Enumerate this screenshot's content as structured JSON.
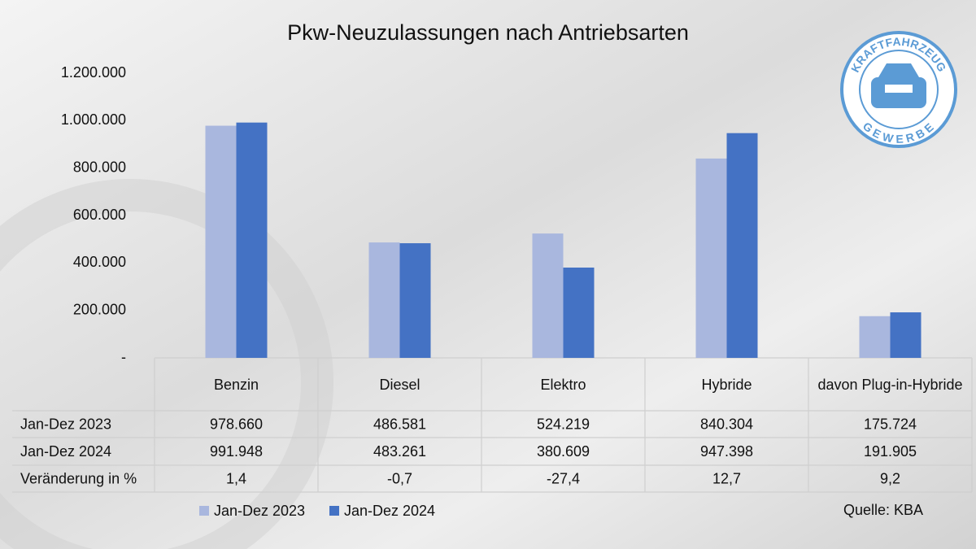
{
  "chart_data": {
    "type": "bar",
    "title": "Pkw-Neuzulassungen nach Antriebsarten",
    "categories": [
      "Benzin",
      "Diesel",
      "Elektro",
      "Hybride",
      "davon Plug-in-Hybride"
    ],
    "series": [
      {
        "name": "Jan-Dez 2023",
        "color": "#a9b7de",
        "values": [
          978660,
          486581,
          524219,
          840304,
          175724
        ],
        "value_labels": [
          "978.660",
          "486.581",
          "524.219",
          "840.304",
          "175.724"
        ]
      },
      {
        "name": "Jan-Dez 2024",
        "color": "#4472c4",
        "values": [
          991948,
          483261,
          380609,
          947398,
          191905
        ],
        "value_labels": [
          "991.948",
          "483.261",
          "380.609",
          "947.398",
          "191.905"
        ]
      }
    ],
    "change": {
      "name": "Veränderung in %",
      "values": [
        1.4,
        -0.7,
        -27.4,
        12.7,
        9.2
      ],
      "value_labels": [
        "1,4",
        "-0,7",
        "-27,4",
        "12,7",
        "9,2"
      ]
    },
    "ylim": [
      0,
      1200000
    ],
    "yticks": [
      {
        "value": 0,
        "label": "-"
      },
      {
        "value": 200000,
        "label": "200.000"
      },
      {
        "value": 400000,
        "label": "400.000"
      },
      {
        "value": 600000,
        "label": "600.000"
      },
      {
        "value": 800000,
        "label": "800.000"
      },
      {
        "value": 1000000,
        "label": "1.000.000"
      },
      {
        "value": 1200000,
        "label": "1.200.000"
      }
    ],
    "grid": false,
    "source": "Quelle: KBA"
  },
  "logo": {
    "top": "KRAFTFAHRZEUG",
    "bottom": "GEWERBE"
  }
}
